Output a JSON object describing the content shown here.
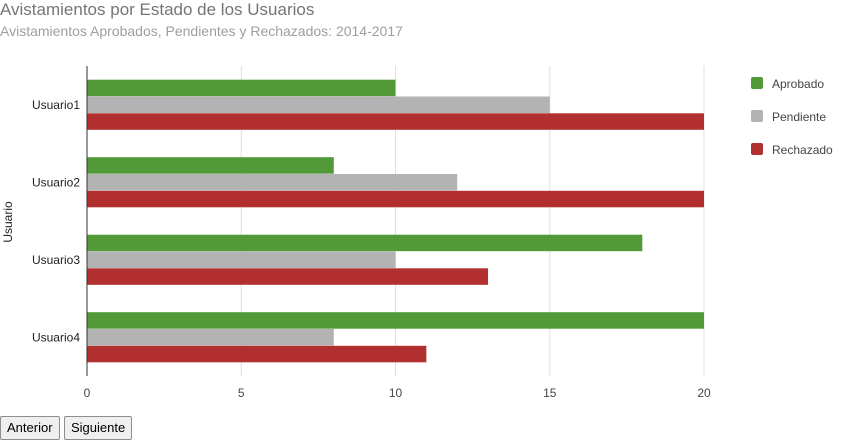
{
  "chart_data": {
    "type": "bar",
    "orientation": "horizontal",
    "title": "Avistamientos por Estado de los Usuarios",
    "subtitle": "Avistamientos Aprobados, Pendientes y Rechazados: 2014-2017",
    "ylabel": "Usuario",
    "xlabel": "",
    "categories": [
      "Usuario1",
      "Usuario2",
      "Usuario3",
      "Usuario4"
    ],
    "series": [
      {
        "name": "Aprobado",
        "color": "#529a38",
        "values": [
          10,
          8,
          18,
          20
        ]
      },
      {
        "name": "Pendiente",
        "color": "#b3b3b3",
        "values": [
          15,
          12,
          10,
          8
        ]
      },
      {
        "name": "Rechazado",
        "color": "#b22f2f",
        "values": [
          20,
          20,
          13,
          11
        ]
      }
    ],
    "xlim": [
      0,
      20
    ],
    "xticks": [
      0,
      5,
      10,
      15,
      20
    ],
    "grid": true,
    "legend_position": "right"
  },
  "buttons": {
    "prev": "Anterior",
    "next": "Siguiente"
  }
}
